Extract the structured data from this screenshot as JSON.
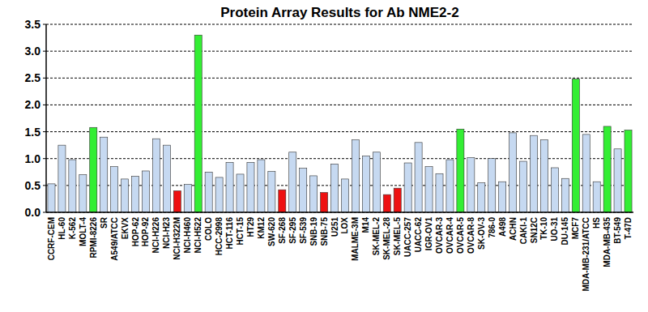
{
  "chart_data": {
    "type": "bar",
    "title": "Protein Array Results for Ab NME2-2",
    "categories": [
      "CCRF-CEM",
      "HL-60",
      "K-562",
      "MOLT-4",
      "RPMI-8226",
      "SR",
      "A549/ATCC",
      "EKVX",
      "HOP-62",
      "HOP-92",
      "NCI-H226",
      "NCI-H23",
      "NCI-H322M",
      "NCI-H460",
      "NCI-H522",
      "COLO",
      "HCC-2998",
      "HCT-116",
      "HCT-15",
      "HT29",
      "KM12",
      "SW-620",
      "SF-268",
      "SF-295",
      "SF-539",
      "SNB-19",
      "SNB-75",
      "U251",
      "LOX",
      "MALME-3M",
      "M14",
      "SK-MEL-2",
      "SK-MEL-28",
      "SK-MEL-5",
      "UACC-257",
      "UACC-62",
      "IGR-OV1",
      "OVCAR-3",
      "OVCAR-4",
      "OVCAR-5",
      "OVCAR-8",
      "SK-OV-3",
      "786-0",
      "A498",
      "ACHN",
      "CAKI-1",
      "SN12C",
      "TK-10",
      "UO-31",
      "DU-145",
      "MCF7",
      "MDA-MB-231/ATCC",
      "HS",
      "MDA-MB-435",
      "BT-549",
      "T-47D"
    ],
    "values": [
      0.53,
      1.25,
      0.98,
      0.7,
      1.58,
      1.4,
      0.85,
      0.62,
      0.67,
      0.77,
      1.37,
      1.25,
      0.4,
      0.52,
      3.3,
      0.75,
      0.65,
      0.93,
      0.71,
      0.93,
      0.98,
      0.76,
      0.42,
      1.12,
      0.82,
      0.68,
      0.37,
      0.9,
      0.62,
      1.35,
      1.05,
      1.12,
      0.33,
      0.45,
      0.92,
      1.3,
      0.85,
      0.72,
      0.98,
      1.55,
      1.02,
      0.55,
      1.0,
      0.57,
      1.48,
      0.95,
      1.43,
      1.35,
      0.83,
      0.63,
      2.48,
      1.45,
      0.57,
      1.6,
      1.18,
      1.53
    ],
    "colors": [
      "#c6d9f1",
      "#c6d9f1",
      "#c6d9f1",
      "#c6d9f1",
      "#33ee33",
      "#c6d9f1",
      "#c6d9f1",
      "#c6d9f1",
      "#c6d9f1",
      "#c6d9f1",
      "#c6d9f1",
      "#c6d9f1",
      "#ee1111",
      "#c6d9f1",
      "#33ee33",
      "#c6d9f1",
      "#c6d9f1",
      "#c6d9f1",
      "#c6d9f1",
      "#c6d9f1",
      "#c6d9f1",
      "#c6d9f1",
      "#ee1111",
      "#c6d9f1",
      "#c6d9f1",
      "#c6d9f1",
      "#ee1111",
      "#c6d9f1",
      "#c6d9f1",
      "#c6d9f1",
      "#c6d9f1",
      "#c6d9f1",
      "#ee1111",
      "#ee1111",
      "#c6d9f1",
      "#c6d9f1",
      "#c6d9f1",
      "#c6d9f1",
      "#c6d9f1",
      "#33ee33",
      "#c6d9f1",
      "#c6d9f1",
      "#c6d9f1",
      "#c6d9f1",
      "#c6d9f1",
      "#c6d9f1",
      "#c6d9f1",
      "#c6d9f1",
      "#c6d9f1",
      "#c6d9f1",
      "#33ee33",
      "#c6d9f1",
      "#c6d9f1",
      "#33ee33",
      "#c6d9f1",
      "#33ee33"
    ],
    "ylim": [
      0,
      3.5
    ],
    "yticks": [
      {
        "value": 0,
        "label": "0.0"
      },
      {
        "value": 0.5,
        "label": "0.5"
      },
      {
        "value": 1,
        "label": "1.0"
      },
      {
        "value": 1.5,
        "label": "1.5"
      },
      {
        "value": 2,
        "label": "2.0"
      },
      {
        "value": 2.5,
        "label": "2.5"
      },
      {
        "value": 3,
        "label": "3.0"
      },
      {
        "value": 3.5,
        "label": "3.5"
      }
    ],
    "grid": true
  }
}
